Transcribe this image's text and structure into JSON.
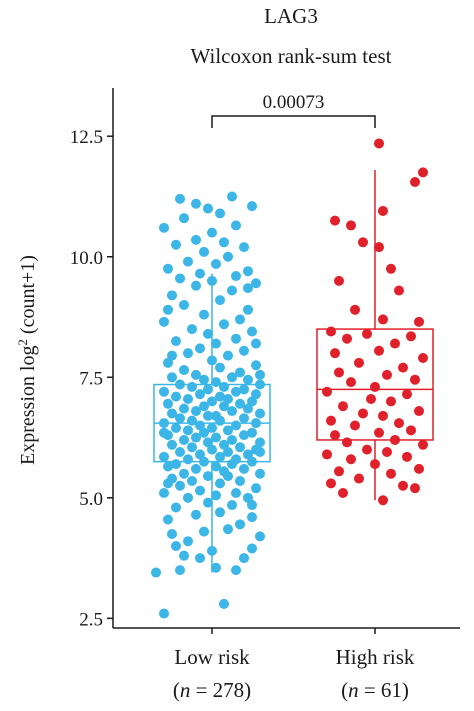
{
  "chart_data": {
    "type": "boxplot",
    "title": "LAG3",
    "subtitle": "Wilcoxon rank-sum test",
    "ylabel_prefix": "Expression log",
    "ylabel_superscript": "2",
    "ylabel_suffix": " (count+1)",
    "ylim": [
      2.3,
      13.5
    ],
    "yticks": [
      2.5,
      5.0,
      7.5,
      10.0,
      12.5
    ],
    "ytick_labels": [
      "2.5",
      "5.0",
      "7.5",
      "10.0",
      "12.5"
    ],
    "p_value": "0.00073",
    "groups": [
      {
        "name": "Low risk",
        "n_label": "(n = 278)",
        "n_italic": "n",
        "n_value": "= 278",
        "color": "#3bb6e6",
        "box": {
          "whisker_low": 3.45,
          "q1": 5.75,
          "median": 6.55,
          "q3": 7.35,
          "whisker_high": 9.65
        },
        "points": [
          [
            -0.6,
            2.6
          ],
          [
            0.15,
            2.8
          ],
          [
            -0.7,
            3.45
          ],
          [
            -0.4,
            3.5
          ],
          [
            0.0,
            3.9
          ],
          [
            0.4,
            3.75
          ],
          [
            -0.3,
            4.1
          ],
          [
            0.6,
            4.2
          ],
          [
            -0.1,
            4.3
          ],
          [
            0.2,
            4.35
          ],
          [
            -0.55,
            4.55
          ],
          [
            0.35,
            4.45
          ],
          [
            -0.2,
            4.65
          ],
          [
            0.1,
            4.7
          ],
          [
            0.5,
            4.6
          ],
          [
            -0.45,
            4.8
          ],
          [
            0.25,
            4.85
          ],
          [
            -0.05,
            4.9
          ],
          [
            -0.3,
            5.0
          ],
          [
            0.45,
            5.0
          ],
          [
            0.05,
            5.05
          ],
          [
            -0.6,
            5.1
          ],
          [
            0.3,
            5.1
          ],
          [
            -0.15,
            5.15
          ],
          [
            0.55,
            5.2
          ],
          [
            -0.4,
            5.25
          ],
          [
            0.1,
            5.3
          ],
          [
            -0.25,
            5.35
          ],
          [
            0.35,
            5.35
          ],
          [
            -0.5,
            5.4
          ],
          [
            0.2,
            5.45
          ],
          [
            -0.05,
            5.45
          ],
          [
            0.6,
            5.5
          ],
          [
            -0.35,
            5.5
          ],
          [
            0.15,
            5.55
          ],
          [
            -0.2,
            5.6
          ],
          [
            0.4,
            5.6
          ],
          [
            -0.55,
            5.65
          ],
          [
            0.05,
            5.65
          ],
          [
            0.25,
            5.7
          ],
          [
            -0.45,
            5.7
          ],
          [
            -0.1,
            5.75
          ],
          [
            0.5,
            5.75
          ],
          [
            0.3,
            5.8
          ],
          [
            -0.3,
            5.8
          ],
          [
            0.1,
            5.85
          ],
          [
            -0.6,
            5.85
          ],
          [
            0.45,
            5.9
          ],
          [
            -0.15,
            5.9
          ],
          [
            0.2,
            5.95
          ],
          [
            -0.4,
            5.95
          ],
          [
            0.0,
            6.0
          ],
          [
            0.55,
            6.0
          ],
          [
            -0.25,
            6.05
          ],
          [
            0.35,
            6.05
          ],
          [
            -0.5,
            6.1
          ],
          [
            0.15,
            6.1
          ],
          [
            -0.05,
            6.15
          ],
          [
            0.6,
            6.15
          ],
          [
            -0.35,
            6.2
          ],
          [
            0.25,
            6.2
          ],
          [
            0.05,
            6.25
          ],
          [
            -0.2,
            6.25
          ],
          [
            0.4,
            6.3
          ],
          [
            -0.55,
            6.3
          ],
          [
            -0.1,
            6.35
          ],
          [
            0.5,
            6.35
          ],
          [
            0.2,
            6.4
          ],
          [
            -0.3,
            6.4
          ],
          [
            0.0,
            6.45
          ],
          [
            -0.45,
            6.45
          ],
          [
            0.3,
            6.5
          ],
          [
            -0.15,
            6.5
          ],
          [
            0.55,
            6.55
          ],
          [
            -0.6,
            6.55
          ],
          [
            0.1,
            6.6
          ],
          [
            -0.25,
            6.6
          ],
          [
            0.4,
            6.65
          ],
          [
            -0.4,
            6.65
          ],
          [
            0.05,
            6.7
          ],
          [
            -0.05,
            6.7
          ],
          [
            0.6,
            6.75
          ],
          [
            -0.5,
            6.75
          ],
          [
            0.25,
            6.8
          ],
          [
            -0.2,
            6.8
          ],
          [
            0.45,
            6.85
          ],
          [
            -0.35,
            6.85
          ],
          [
            0.15,
            6.9
          ],
          [
            -0.1,
            6.9
          ],
          [
            0.35,
            6.95
          ],
          [
            -0.55,
            6.95
          ],
          [
            0.0,
            7.0
          ],
          [
            0.5,
            7.0
          ],
          [
            -0.3,
            7.05
          ],
          [
            0.2,
            7.05
          ],
          [
            -0.45,
            7.1
          ],
          [
            0.1,
            7.1
          ],
          [
            0.55,
            7.15
          ],
          [
            -0.15,
            7.15
          ],
          [
            0.3,
            7.2
          ],
          [
            -0.6,
            7.2
          ],
          [
            -0.05,
            7.25
          ],
          [
            0.4,
            7.25
          ],
          [
            -0.25,
            7.3
          ],
          [
            0.15,
            7.3
          ],
          [
            0.6,
            7.35
          ],
          [
            -0.4,
            7.35
          ],
          [
            0.05,
            7.4
          ],
          [
            -0.1,
            7.45
          ],
          [
            0.45,
            7.45
          ],
          [
            -0.5,
            7.5
          ],
          [
            0.25,
            7.5
          ],
          [
            -0.2,
            7.55
          ],
          [
            0.35,
            7.6
          ],
          [
            -0.35,
            7.65
          ],
          [
            0.1,
            7.7
          ],
          [
            0.55,
            7.75
          ],
          [
            -0.55,
            7.8
          ],
          [
            0.0,
            7.85
          ],
          [
            0.2,
            7.95
          ],
          [
            -0.3,
            8.0
          ],
          [
            0.4,
            8.05
          ],
          [
            -0.15,
            8.1
          ],
          [
            0.05,
            8.2
          ],
          [
            -0.45,
            8.25
          ],
          [
            0.3,
            8.3
          ],
          [
            -0.05,
            8.4
          ],
          [
            0.5,
            8.45
          ],
          [
            -0.25,
            8.5
          ],
          [
            0.15,
            8.6
          ],
          [
            -0.6,
            8.65
          ],
          [
            0.35,
            8.7
          ],
          [
            -0.1,
            8.8
          ],
          [
            0.45,
            8.9
          ],
          [
            -0.35,
            9.0
          ],
          [
            0.1,
            9.1
          ],
          [
            -0.5,
            9.2
          ],
          [
            0.25,
            9.3
          ],
          [
            -0.2,
            9.4
          ],
          [
            0.55,
            9.45
          ],
          [
            0.0,
            9.5
          ],
          [
            -0.4,
            9.55
          ],
          [
            0.3,
            9.6
          ],
          [
            -0.15,
            9.65
          ],
          [
            0.45,
            9.7
          ],
          [
            -0.55,
            9.75
          ],
          [
            0.05,
            9.85
          ],
          [
            -0.3,
            9.9
          ],
          [
            0.2,
            10.0
          ],
          [
            -0.1,
            10.1
          ],
          [
            0.4,
            10.2
          ],
          [
            -0.45,
            10.25
          ],
          [
            0.15,
            10.3
          ],
          [
            -0.2,
            10.35
          ],
          [
            0.0,
            10.5
          ],
          [
            -0.6,
            10.6
          ],
          [
            0.3,
            10.65
          ],
          [
            -0.35,
            10.8
          ],
          [
            0.1,
            10.9
          ],
          [
            -0.05,
            11.0
          ],
          [
            0.5,
            11.05
          ],
          [
            -0.4,
            11.2
          ],
          [
            0.25,
            11.25
          ],
          [
            -0.2,
            11.1
          ],
          [
            0.45,
            9.35
          ],
          [
            -0.55,
            8.9
          ],
          [
            0.55,
            8.2
          ],
          [
            -0.5,
            7.95
          ],
          [
            0.6,
            7.55
          ],
          [
            -0.6,
            6.35
          ],
          [
            0.6,
            5.95
          ],
          [
            -0.55,
            5.3
          ],
          [
            0.5,
            4.85
          ],
          [
            -0.5,
            4.25
          ],
          [
            0.3,
            3.5
          ],
          [
            -0.15,
            3.75
          ],
          [
            0.05,
            3.55
          ],
          [
            -0.35,
            3.8
          ],
          [
            0.5,
            3.95
          ],
          [
            -0.45,
            4.0
          ]
        ]
      },
      {
        "name": "High risk",
        "n_label": "(n = 61)",
        "n_italic": "n",
        "n_value": "= 61",
        "color": "#e0202a",
        "box": {
          "whisker_low": 4.95,
          "q1": 6.2,
          "median": 7.25,
          "q3": 8.5,
          "whisker_high": 11.8
        },
        "points": [
          [
            0.1,
            4.95
          ],
          [
            -0.4,
            5.1
          ],
          [
            0.5,
            5.2
          ],
          [
            -0.55,
            5.3
          ],
          [
            0.35,
            5.25
          ],
          [
            -0.2,
            5.4
          ],
          [
            0.2,
            5.5
          ],
          [
            -0.45,
            5.55
          ],
          [
            0.55,
            5.6
          ],
          [
            0.0,
            5.7
          ],
          [
            -0.3,
            5.8
          ],
          [
            0.4,
            5.85
          ],
          [
            -0.6,
            5.9
          ],
          [
            0.15,
            5.95
          ],
          [
            -0.1,
            6.0
          ],
          [
            0.6,
            6.1
          ],
          [
            -0.35,
            6.15
          ],
          [
            0.25,
            6.2
          ],
          [
            -0.5,
            6.3
          ],
          [
            0.05,
            6.35
          ],
          [
            0.45,
            6.4
          ],
          [
            -0.25,
            6.5
          ],
          [
            0.3,
            6.55
          ],
          [
            -0.55,
            6.6
          ],
          [
            0.1,
            6.7
          ],
          [
            -0.15,
            6.75
          ],
          [
            0.55,
            6.8
          ],
          [
            -0.4,
            6.9
          ],
          [
            0.2,
            7.0
          ],
          [
            -0.05,
            7.05
          ],
          [
            0.4,
            7.15
          ],
          [
            -0.6,
            7.2
          ],
          [
            0.0,
            7.3
          ],
          [
            -0.3,
            7.4
          ],
          [
            0.5,
            7.45
          ],
          [
            0.15,
            7.55
          ],
          [
            -0.45,
            7.6
          ],
          [
            0.35,
            7.7
          ],
          [
            -0.2,
            7.8
          ],
          [
            0.6,
            7.9
          ],
          [
            -0.5,
            8.0
          ],
          [
            0.05,
            8.05
          ],
          [
            0.25,
            8.2
          ],
          [
            -0.35,
            8.3
          ],
          [
            0.45,
            8.35
          ],
          [
            -0.1,
            8.4
          ],
          [
            0.55,
            8.65
          ],
          [
            -0.55,
            8.45
          ],
          [
            0.1,
            8.7
          ],
          [
            -0.25,
            8.9
          ],
          [
            0.3,
            9.3
          ],
          [
            -0.45,
            9.5
          ],
          [
            0.2,
            9.75
          ],
          [
            0.05,
            10.2
          ],
          [
            -0.3,
            10.65
          ],
          [
            -0.5,
            10.75
          ],
          [
            0.1,
            10.95
          ],
          [
            0.5,
            11.55
          ],
          [
            0.6,
            11.75
          ],
          [
            0.05,
            12.35
          ],
          [
            -0.15,
            10.3
          ]
        ]
      }
    ]
  }
}
